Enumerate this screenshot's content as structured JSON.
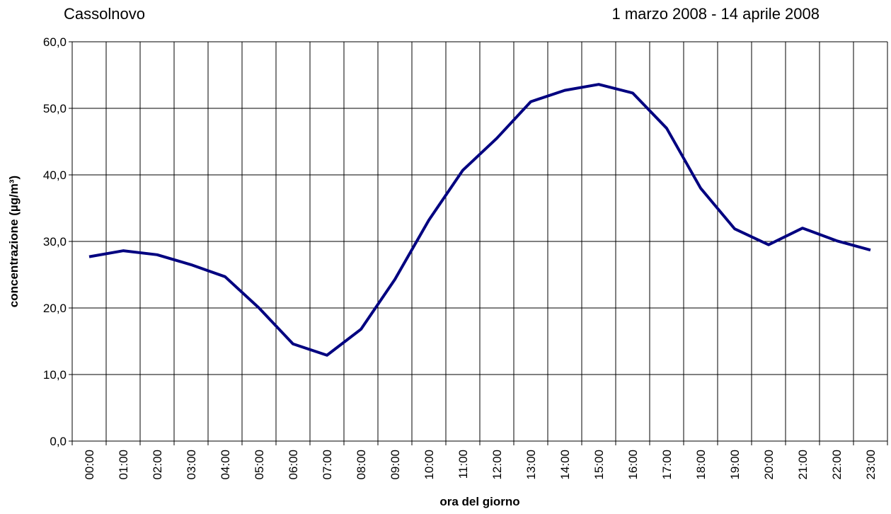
{
  "chart_data": {
    "type": "line",
    "subtitle_left": "Cassolnovo",
    "subtitle_right": "1 marzo 2008 - 14 aprile 2008",
    "x_label": "ora del giorno",
    "y_label": "concentrazione (µg/m³)",
    "categories": [
      "00:00",
      "01:00",
      "02:00",
      "03:00",
      "04:00",
      "05:00",
      "06:00",
      "07:00",
      "08:00",
      "09:00",
      "10:00",
      "11:00",
      "12:00",
      "13:00",
      "14:00",
      "15:00",
      "16:00",
      "17:00",
      "18:00",
      "19:00",
      "20:00",
      "21:00",
      "22:00",
      "23:00"
    ],
    "series": [
      {
        "color": "#000080",
        "values": [
          27.7,
          28.6,
          28.0,
          26.5,
          24.7,
          20.0,
          14.6,
          12.9,
          16.8,
          24.3,
          33.2,
          40.7,
          45.5,
          51.0,
          52.7,
          53.6,
          52.3,
          47.0,
          38.0,
          31.9,
          29.5,
          32.0,
          30.1,
          28.7
        ]
      }
    ],
    "ylim": [
      0,
      60
    ],
    "yticks": [
      {
        "value": 0,
        "label": "0,0"
      },
      {
        "value": 10,
        "label": "10,0"
      },
      {
        "value": 20,
        "label": "20,0"
      },
      {
        "value": 30,
        "label": "30,0"
      },
      {
        "value": 40,
        "label": "40,0"
      },
      {
        "value": 50,
        "label": "50,0"
      },
      {
        "value": 60,
        "label": "60,0"
      }
    ],
    "grid": true
  }
}
